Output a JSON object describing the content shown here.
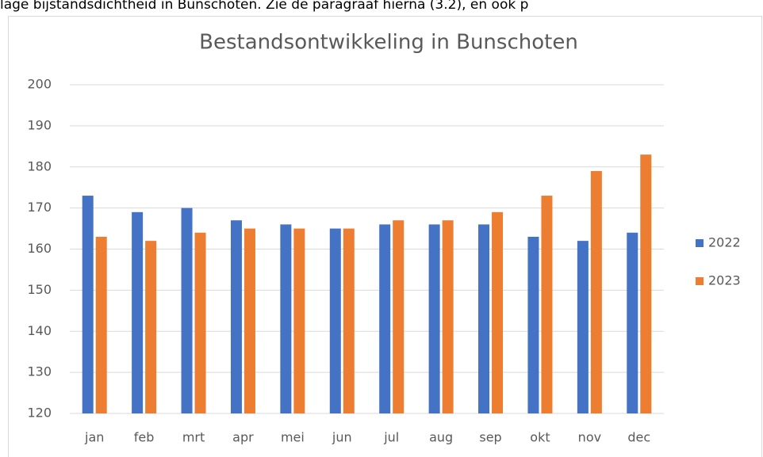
{
  "caption_text": "lage bijstandsdichtheid in Bunschoten. Zie de paragraaf hierna (3.2), en ook p",
  "chart_data": {
    "type": "bar",
    "title": "Bestandsontwikkeling in Bunschoten",
    "categories": [
      "jan",
      "feb",
      "mrt",
      "apr",
      "mei",
      "jun",
      "jul",
      "aug",
      "sep",
      "okt",
      "nov",
      "dec"
    ],
    "series": [
      {
        "name": "2022",
        "color": "#4472c4",
        "values": [
          173,
          169,
          170,
          167,
          166,
          165,
          166,
          166,
          166,
          163,
          162,
          164
        ]
      },
      {
        "name": "2023",
        "color": "#ed7d31",
        "values": [
          163,
          162,
          164,
          165,
          165,
          165,
          167,
          167,
          169,
          173,
          179,
          183
        ]
      }
    ],
    "ylim": [
      120,
      200
    ],
    "yticks": [
      120,
      130,
      140,
      150,
      160,
      170,
      180,
      190,
      200
    ],
    "grid": true,
    "legend": "right"
  }
}
